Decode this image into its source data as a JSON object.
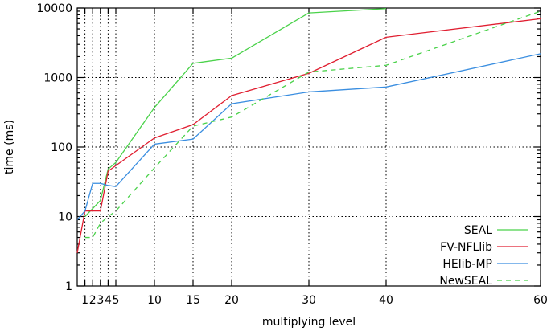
{
  "chart_data": {
    "type": "line",
    "xlabel": "multiplying level",
    "ylabel": "time (ms)",
    "xlim": [
      0,
      60
    ],
    "ylim": [
      1,
      10000
    ],
    "yscale": "log",
    "grid": true,
    "legend_position": "bottom-right",
    "x_ticks": [
      1,
      2,
      3,
      4,
      5,
      10,
      15,
      20,
      30,
      40,
      60
    ],
    "x_tick_labels": [
      "1",
      "2",
      "3",
      "4",
      "5",
      "10",
      "15",
      "20",
      "30",
      "40",
      "60"
    ],
    "y_ticks": [
      1,
      10,
      100,
      1000,
      10000
    ],
    "y_tick_labels": [
      "1",
      "10",
      "100",
      "1000",
      "10000"
    ],
    "series": [
      {
        "name": "SEAL",
        "color": "#4ad24a",
        "dash": "solid",
        "x": [
          1,
          2,
          3,
          4,
          5,
          10,
          15,
          20,
          30,
          40
        ],
        "y": [
          10,
          13,
          17,
          48,
          60,
          370,
          1600,
          1900,
          8500,
          9800
        ]
      },
      {
        "name": "FV-NFLlib",
        "color": "#e01e30",
        "dash": "solid",
        "x": [
          0,
          1,
          2,
          3,
          4,
          10,
          15,
          20,
          30,
          40,
          60
        ],
        "y": [
          3,
          12,
          12,
          12,
          45,
          135,
          210,
          550,
          1150,
          3800,
          7000
        ]
      },
      {
        "name": "HElib-MP",
        "color": "#3a8ee0",
        "dash": "solid",
        "x": [
          0,
          1,
          2,
          3,
          4,
          5,
          10,
          15,
          20,
          30,
          40,
          60
        ],
        "y": [
          9,
          12,
          30,
          30,
          28,
          27,
          110,
          130,
          420,
          620,
          730,
          2200
        ]
      },
      {
        "name": "NewSEAL",
        "color": "#4ad24a",
        "dash": "dashed",
        "x": [
          1,
          2,
          3,
          4,
          5,
          10,
          15,
          20,
          30,
          40,
          60
        ],
        "y": [
          5,
          5,
          8,
          10,
          12,
          50,
          200,
          270,
          1200,
          1500,
          9000
        ]
      }
    ]
  }
}
